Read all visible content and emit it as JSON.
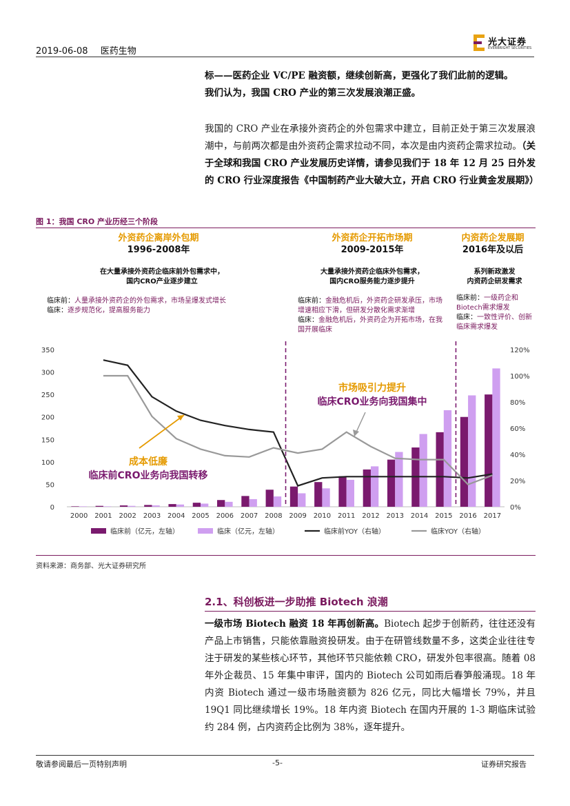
{
  "header": {
    "date": "2019-06-08",
    "category": "医药生物",
    "logo_cn": "光大证券",
    "logo_en": "EVERBRIGHT SECURITIES"
  },
  "intro": {
    "line1": "标——医药企业 VC/PE 融资额，继续创新高，更强化了我们此前的逻辑。",
    "line2": "我们认为，我国 CRO 产业的第三次发展浪潮正盛。"
  },
  "para2": {
    "text": "我国的 CRO 产业在承接外资药企的外包需求中建立，目前正处于第三次发展浪潮中，与前两次都是由外资药企需求拉动不同，本次是由内资药企需求拉动。",
    "bold": "（关于全球和我国 CRO 产业发展历史详情，请参见我们于 18 年 12 月 25 日外发的 CRO 行业深度报告《中国制药产业大破大立，开启 CRO 行业黄金发展期》）"
  },
  "figure": {
    "title": "图 1：我国 CRO 产业历经三个阶段",
    "phases": [
      {
        "title": "外资药企离岸外包期",
        "years": "1996-2008年",
        "desc1": "在大量承接外资药企临床前外包需求中，",
        "desc2": "国内CRO产业逐步建立",
        "notes": [
          {
            "k": "临床前：",
            "v": "人量承接外资药企的外包需求，市场呈爆发式增长"
          },
          {
            "k": "临床：",
            "v": "逐步规范化，提高服务能力"
          }
        ]
      },
      {
        "title": "外资药企开拓市场期",
        "years": "2009-2015年",
        "desc1": "大量承接外资药企临床外包需求，",
        "desc2": "国内CRO服务能力逐步提升",
        "notes": [
          {
            "k": "临床前：",
            "v": "金融危机后，外资药企研发承压，市场增速相应下滑，但研发分散化需求渐增"
          },
          {
            "k": "临床：",
            "v": "金融危机后，外资药企为开拓市场，在我国开展临床"
          }
        ]
      },
      {
        "title": "内资药企发展期",
        "years": "2016年及以后",
        "desc1": "系列新政激发",
        "desc2": "内资药企研发需求",
        "notes": [
          {
            "k": "临床前：",
            "v": "一级药企和Biotech需求爆发"
          },
          {
            "k": "临床：",
            "v": "一致性评价、创新临床需求爆发"
          }
        ]
      }
    ],
    "callout_left": {
      "line1": "成本低廉",
      "line2": "临床前CRO业务向我国转移"
    },
    "callout_right": {
      "line1": "市场吸引力提升",
      "line2": "临床CRO业务向我国集中"
    }
  },
  "chart_data": {
    "type": "bar",
    "categories": [
      "2000",
      "2001",
      "2002",
      "2003",
      "2004",
      "2005",
      "2006",
      "2007",
      "2008",
      "2009",
      "2010",
      "2011",
      "2012",
      "2013",
      "2014",
      "2015",
      "2016",
      "2017"
    ],
    "series": [
      {
        "name": "临床前（亿元，左轴）",
        "axis": "left",
        "kind": "bar",
        "color": "#7a1a6e",
        "values": [
          1,
          2,
          3,
          4,
          6,
          9,
          15,
          24,
          38,
          45,
          55,
          68,
          83,
          105,
          132,
          166,
          200,
          250
        ]
      },
      {
        "name": "临床（亿元，左轴）",
        "axis": "left",
        "kind": "bar",
        "color": "#cf9ff0",
        "values": [
          1,
          1,
          2,
          3,
          5,
          7,
          11,
          17,
          23,
          30,
          41,
          60,
          90,
          122,
          162,
          215,
          248,
          308
        ]
      },
      {
        "name": "临床前YOY（右轴）",
        "axis": "right",
        "kind": "line",
        "color": "#222222",
        "values": [
          null,
          112,
          108,
          84,
          73,
          66,
          62,
          59,
          57,
          16,
          22,
          23,
          23,
          23,
          23,
          23,
          22,
          25
        ]
      },
      {
        "name": "临床YOY（右轴）",
        "axis": "right",
        "kind": "line",
        "color": "#999999",
        "values": [
          null,
          100,
          100,
          69,
          52,
          44,
          39,
          38,
          45,
          41,
          44,
          57,
          46,
          37,
          36,
          36,
          17,
          24
        ]
      }
    ],
    "y_left": {
      "min": 0,
      "max": 350,
      "ticks": [
        "0",
        "50",
        "100",
        "150",
        "200",
        "250",
        "300",
        "350"
      ]
    },
    "y_right": {
      "min": 0,
      "max": 120,
      "ticks": [
        "0%",
        "20%",
        "40%",
        "60%",
        "80%",
        "100%",
        "120%"
      ]
    },
    "dividers_after": [
      "2008",
      "2015"
    ],
    "legend_position": "bottom"
  },
  "source": "资料来源：商务部、光大证券研究所",
  "section": {
    "title": "2.1、科创板进一步助推 Biotech 浪潮",
    "lead": "一级市场 Biotech 融资 18 年再创新高。",
    "body": "Biotech 起步于创新药，往往还没有产品上市销售，只能依靠融资投研发。由于在研管线数量不多，这类企业往往专注于研发的某些核心环节，其他环节只能依赖 CRO，研发外包率很高。随着 08 年外企裁员、15 年集中审评，国内的 Biotech 公司如雨后春笋般涌现。18 年内资 Biotech 通过一级市场融资额为 826 亿元，同比大幅增长 79%，并且 19Q1 同比继续增长 19%。18 年内资 Biotech 在国内开展的 1-3 期临床试验约 284 例，占内资药企比例为 38%，逐年提升。"
  },
  "footer": {
    "left": "敬请参阅最后一页特别声明",
    "center": "-5-",
    "right": "证券研究报告"
  }
}
